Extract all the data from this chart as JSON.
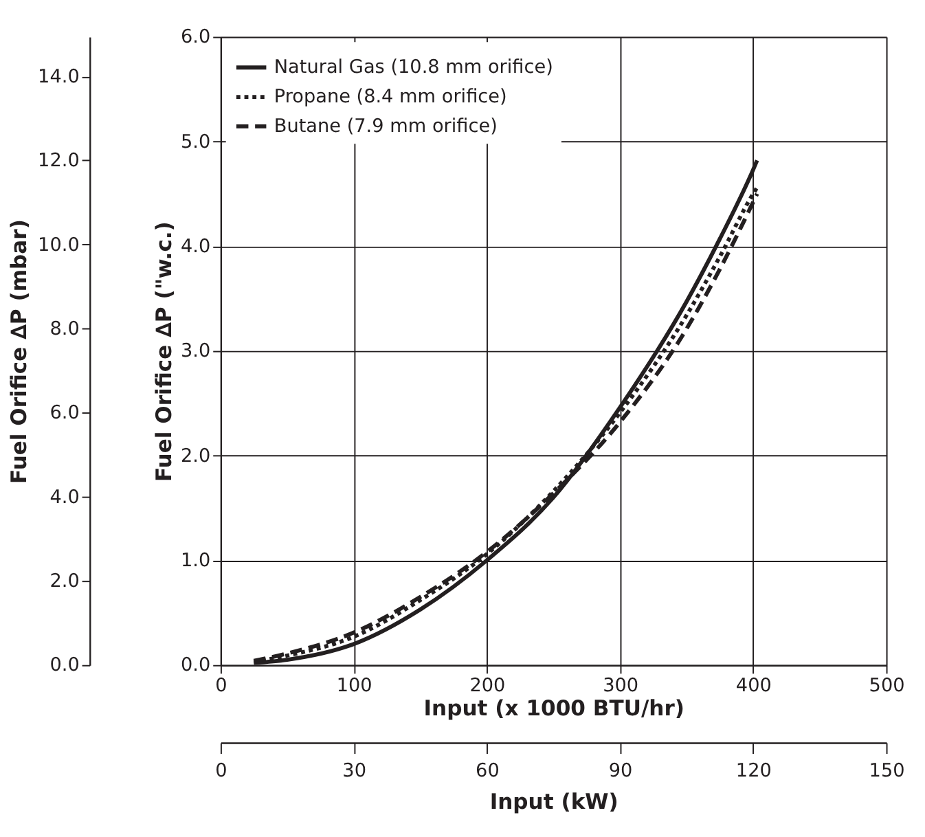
{
  "chart_data": {
    "type": "line",
    "xlabel": "Input (x 1000 BTU/hr)",
    "ylabel": "Fuel Orifice ∆P  (\"w.c.)",
    "y2label": "Fuel Orifice ∆P (mbar)",
    "x2label": "Input (kW)",
    "x": [
      25,
      50,
      100,
      150,
      200,
      250,
      300,
      350,
      375,
      400,
      403
    ],
    "series": [
      {
        "name": "Natural Gas (10.8 mm orifice)",
        "color": "#231f20",
        "line_style": "solid",
        "values": [
          0.02,
          0.05,
          0.2,
          0.53,
          1.0,
          1.6,
          2.46,
          3.47,
          4.07,
          4.73,
          4.82
        ]
      },
      {
        "name": "Propane (8.4 mm orifice)",
        "color": "#231f20",
        "line_style": "dotted",
        "values": [
          0.03,
          0.09,
          0.27,
          0.62,
          1.06,
          1.66,
          2.41,
          3.34,
          3.9,
          4.5,
          4.56
        ]
      },
      {
        "name": "Butane (7.9 mm orifice)",
        "color": "#231f20",
        "line_style": "dashed",
        "values": [
          0.04,
          0.11,
          0.31,
          0.65,
          1.08,
          1.64,
          2.32,
          3.21,
          3.78,
          4.42,
          4.5
        ]
      }
    ],
    "xlim": [
      0,
      500
    ],
    "xticks": [
      0,
      100,
      200,
      300,
      400,
      500
    ],
    "ylim": [
      0,
      6
    ],
    "yticks": [
      {
        "value": 0,
        "label": "0.0"
      },
      {
        "value": 1,
        "label": "1.0"
      },
      {
        "value": 2,
        "label": "2.0"
      },
      {
        "value": 3,
        "label": "3.0"
      },
      {
        "value": 4,
        "label": "4.0"
      },
      {
        "value": 5,
        "label": "5.0"
      },
      {
        "value": 6,
        "label": "6.0"
      }
    ],
    "y2lim": [
      0,
      14.94
    ],
    "y2ticks": [
      {
        "value": 0,
        "label": "0.0"
      },
      {
        "value": 2,
        "label": "2.0"
      },
      {
        "value": 4,
        "label": "4.0"
      },
      {
        "value": 6,
        "label": "6.0"
      },
      {
        "value": 8,
        "label": "8.0"
      },
      {
        "value": 10,
        "label": "10.0"
      },
      {
        "value": 12,
        "label": "12.0"
      },
      {
        "value": 14,
        "label": "14.0"
      }
    ],
    "x2lim": [
      0,
      150
    ],
    "x2ticks": [
      0,
      30,
      60,
      90,
      120,
      150
    ],
    "grid": true,
    "legend": "top left"
  }
}
